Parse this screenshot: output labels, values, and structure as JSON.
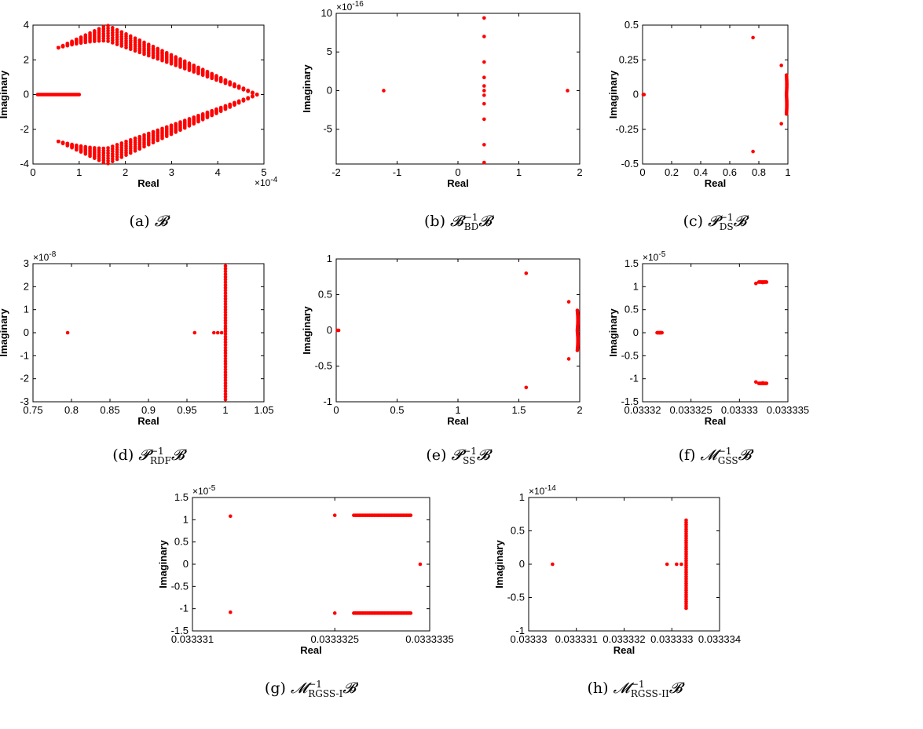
{
  "chart_data": [
    {
      "id": "a",
      "type": "scatter",
      "xlabel": "Real",
      "ylabel": "Imaginary",
      "xlim": [
        0,
        5
      ],
      "ylim": [
        -4,
        4
      ],
      "xticks": [
        "0",
        "1",
        "2",
        "3",
        "4",
        "5"
      ],
      "yticks": [
        "-4",
        "-2",
        "0",
        "2",
        "4"
      ],
      "x_exponent": "×10",
      "x_exponent_power": "-4",
      "y_exponent": "",
      "y_exponent_power": "",
      "caption": {
        "label": "(a)",
        "symbol": "B",
        "sup": "",
        "sub": ""
      },
      "color": "#ff0000",
      "description_series": [
        {
          "kind": "segment",
          "from": [
            0.1,
            0
          ],
          "to": [
            1.0,
            0
          ],
          "n": 40
        },
        {
          "kind": "wedge_upper",
          "left": [
            0.55,
            2.7
          ],
          "tip": [
            1.6,
            4.0
          ],
          "inner": [
            1.6,
            3.1
          ],
          "end": [
            4.85,
            0
          ]
        },
        {
          "kind": "wedge_lower",
          "left": [
            0.55,
            -2.7
          ],
          "tip": [
            1.6,
            -4.0
          ],
          "inner": [
            1.6,
            -3.1
          ],
          "end": [
            4.85,
            0
          ]
        }
      ]
    },
    {
      "id": "b",
      "type": "scatter",
      "xlabel": "Real",
      "ylabel": "Imaginary",
      "xlim": [
        -2,
        2
      ],
      "ylim": [
        -9.5,
        10
      ],
      "xticks": [
        "-2",
        "-1",
        "0",
        "1",
        "2"
      ],
      "yticks": [
        "-5",
        "0",
        "5",
        "10"
      ],
      "x_exponent": "",
      "x_exponent_power": "",
      "y_exponent": "×10",
      "y_exponent_power": "-16",
      "caption": {
        "label": "(b)",
        "symbol": "B",
        "sup": "−1",
        "sub": "BD"
      },
      "color": "#ff0000",
      "points": [
        [
          -1.22,
          0
        ],
        [
          1.8,
          0
        ],
        [
          0.43,
          9.4
        ],
        [
          0.43,
          7.0
        ],
        [
          0.43,
          3.7
        ],
        [
          0.43,
          1.7
        ],
        [
          0.43,
          0.6
        ],
        [
          0.43,
          0
        ],
        [
          0.43,
          -0.6
        ],
        [
          0.43,
          -1.7
        ],
        [
          0.43,
          -3.7
        ],
        [
          0.43,
          -7.0
        ],
        [
          0.43,
          -9.3
        ]
      ]
    },
    {
      "id": "c",
      "type": "scatter",
      "xlabel": "Real",
      "ylabel": "Imaginary",
      "xlim": [
        0,
        1
      ],
      "ylim": [
        -0.5,
        0.5
      ],
      "xticks": [
        "0",
        "0.2",
        "0.4",
        "0.6",
        "0.8",
        "1"
      ],
      "yticks": [
        "-0.5",
        "-0.25",
        "0",
        "0.25",
        "0.5"
      ],
      "x_exponent": "",
      "x_exponent_power": "",
      "y_exponent": "",
      "y_exponent_power": "",
      "caption": {
        "label": "(c)",
        "symbol": "P",
        "sup": "−1",
        "sub": "DS"
      },
      "color": "#ff0000",
      "points": [
        [
          0.005,
          0
        ],
        [
          0.01,
          0
        ],
        [
          0.76,
          0.41
        ],
        [
          0.76,
          -0.41
        ],
        [
          0.955,
          0.21
        ],
        [
          0.955,
          -0.21
        ]
      ],
      "description_series": [
        {
          "kind": "arc",
          "center": [
            0,
            0
          ],
          "radius": 1.0,
          "ylim": [
            -0.14,
            0.14
          ],
          "n": 30
        }
      ]
    },
    {
      "id": "d",
      "type": "scatter",
      "xlabel": "Real",
      "ylabel": "Imaginary",
      "xlim": [
        0.75,
        1.05
      ],
      "ylim": [
        -3,
        3
      ],
      "xticks": [
        "0.75",
        "0.8",
        "0.85",
        "0.9",
        "0.95",
        "1",
        "1.05"
      ],
      "yticks": [
        "-3",
        "-2",
        "-1",
        "0",
        "1",
        "2",
        "3"
      ],
      "x_exponent": "",
      "x_exponent_power": "",
      "y_exponent": "×10",
      "y_exponent_power": "-8",
      "caption": {
        "label": "(d)",
        "symbol": "P",
        "sup": "−1",
        "sub": "RDF"
      },
      "color": "#ff0000",
      "points": [
        [
          0.795,
          0
        ],
        [
          0.96,
          0
        ],
        [
          0.985,
          0
        ],
        [
          0.99,
          0
        ],
        [
          0.995,
          0
        ]
      ],
      "description_series": [
        {
          "kind": "vertical",
          "x": 1.0,
          "ylim": [
            -2.9,
            2.9
          ],
          "n": 50
        }
      ]
    },
    {
      "id": "e",
      "type": "scatter",
      "xlabel": "Real",
      "ylabel": "Imaginary",
      "xlim": [
        0,
        2
      ],
      "ylim": [
        -1,
        1
      ],
      "xticks": [
        "0",
        "0.5",
        "1",
        "1.5",
        "2"
      ],
      "yticks": [
        "-1",
        "-0.5",
        "0",
        "0.5",
        "1"
      ],
      "x_exponent": "",
      "x_exponent_power": "",
      "y_exponent": "",
      "y_exponent_power": "",
      "caption": {
        "label": "(e)",
        "symbol": "P",
        "sup": "−1",
        "sub": "SS"
      },
      "color": "#ff0000",
      "points": [
        [
          0.01,
          0
        ],
        [
          0.02,
          0
        ],
        [
          1.56,
          0.8
        ],
        [
          1.56,
          -0.8
        ],
        [
          1.91,
          0.4
        ],
        [
          1.91,
          -0.4
        ]
      ],
      "description_series": [
        {
          "kind": "arc",
          "center": [
            0,
            0
          ],
          "radius": 2.0,
          "ylim": [
            -0.28,
            0.28
          ],
          "n": 30
        }
      ]
    },
    {
      "id": "f",
      "type": "scatter",
      "xlabel": "Real",
      "ylabel": "Imaginary",
      "xlim": [
        0.03332,
        0.033335
      ],
      "ylim": [
        -1.5,
        1.5
      ],
      "xticks": [
        "0.03332",
        "0.033325",
        "0.03333",
        "0.033335"
      ],
      "yticks": [
        "-1.5",
        "-1",
        "-0.5",
        "0",
        "0.5",
        "1",
        "1.5"
      ],
      "x_exponent": "",
      "x_exponent_power": "",
      "y_exponent": "×10",
      "y_exponent_power": "-5",
      "caption": {
        "label": "(f)",
        "symbol": "M",
        "sup": "−1",
        "sub": "GSS"
      },
      "color": "#ff0000",
      "points": [
        [
          0.0333317,
          1.07
        ],
        [
          0.0333317,
          -1.07
        ],
        [
          0.0333324,
          1.09
        ],
        [
          0.0333324,
          -1.09
        ]
      ],
      "description_series": [
        {
          "kind": "hsegment",
          "y": 0,
          "xlim": [
            0.0333215,
            0.033322
          ],
          "n": 10
        },
        {
          "kind": "hsegment",
          "y": 1.1,
          "xlim": [
            0.033332,
            0.0333328
          ],
          "n": 10
        },
        {
          "kind": "hsegment",
          "y": -1.1,
          "xlim": [
            0.033332,
            0.0333328
          ],
          "n": 10
        }
      ]
    },
    {
      "id": "g",
      "type": "scatter",
      "xlabel": "Real",
      "ylabel": "Imaginary",
      "xlim": [
        0.033331,
        0.0333335
      ],
      "ylim": [
        -1.5,
        1.5
      ],
      "xticks": [
        "0.033331",
        "0.0333325",
        "0.0333335"
      ],
      "yticks": [
        "-1.5",
        "-1",
        "-0.5",
        "0",
        "0.5",
        "1",
        "1.5"
      ],
      "x_exponent": "",
      "x_exponent_power": "",
      "y_exponent": "×10",
      "y_exponent_power": "-5",
      "caption": {
        "label": "(g)",
        "symbol": "M",
        "sup": "−1",
        "sub": "RGSS-I"
      },
      "color": "#ff0000",
      "points": [
        [
          0.0333314,
          1.08
        ],
        [
          0.0333314,
          -1.08
        ],
        [
          0.0333325,
          1.1
        ],
        [
          0.0333325,
          -1.1
        ],
        [
          0.0333334,
          0
        ]
      ],
      "description_series": [
        {
          "kind": "hsegment",
          "y": 1.1,
          "xlim": [
            0.0333327,
            0.0333333
          ],
          "n": 40
        },
        {
          "kind": "hsegment",
          "y": -1.1,
          "xlim": [
            0.0333327,
            0.0333333
          ],
          "n": 40
        }
      ]
    },
    {
      "id": "h",
      "type": "scatter",
      "xlabel": "Real",
      "ylabel": "Imaginary",
      "xlim": [
        0.03333,
        0.033334
      ],
      "ylim": [
        -1,
        1
      ],
      "xticks": [
        "0.03333",
        "0.033331",
        "0.033332",
        "0.033333",
        "0.033334"
      ],
      "yticks": [
        "-1",
        "-0.5",
        "0",
        "0.5",
        "1"
      ],
      "x_exponent": "",
      "x_exponent_power": "",
      "y_exponent": "×10",
      "y_exponent_power": "-14",
      "caption": {
        "label": "(h)",
        "symbol": "M",
        "sup": "−1",
        "sub": "RGSS-II"
      },
      "color": "#ff0000",
      "points": [
        [
          0.0333305,
          0
        ],
        [
          0.0333329,
          0
        ],
        [
          0.0333331,
          0
        ],
        [
          0.0333332,
          0
        ]
      ],
      "description_series": [
        {
          "kind": "vertical",
          "x": 0.0333333,
          "ylim": [
            -0.66,
            0.66
          ],
          "n": 40
        }
      ]
    }
  ]
}
